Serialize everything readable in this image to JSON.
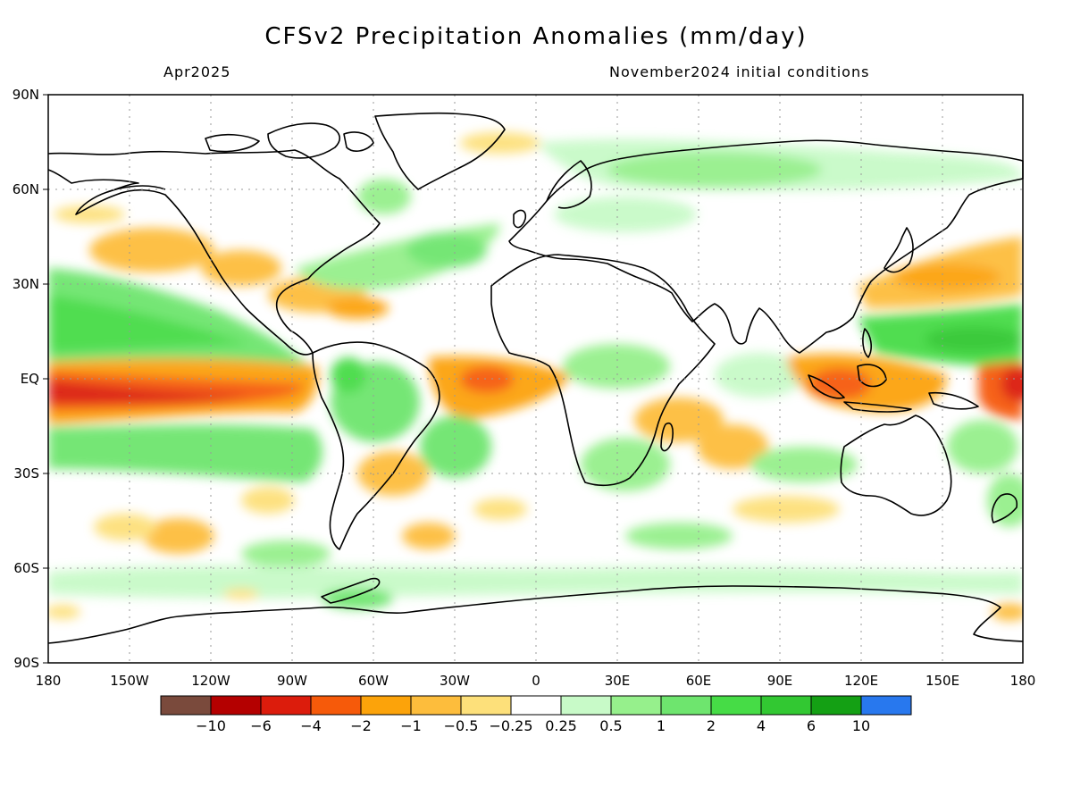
{
  "title": "CFSv2 Precipitation Anomalies (mm/day)",
  "valid_month": "Apr2025",
  "initial_conditions": "November2024 initial conditions",
  "lat_labels": [
    "90N",
    "60N",
    "30N",
    "EQ",
    "30S",
    "60S",
    "90S"
  ],
  "lon_labels": [
    "180",
    "150W",
    "120W",
    "90W",
    "60W",
    "30W",
    "0",
    "30E",
    "60E",
    "90E",
    "120E",
    "150E",
    "180"
  ],
  "colorbar": {
    "colors": [
      "#7a4a3c",
      "#b40000",
      "#dc1c0c",
      "#f65a0a",
      "#fca30a",
      "#fdbd3c",
      "#fde07a",
      "#ffffff",
      "#c8fac8",
      "#96f08c",
      "#6ee56e",
      "#46dc46",
      "#32c832",
      "#14a014",
      "#2878ee"
    ],
    "labels": [
      "−10",
      "−6",
      "−4",
      "−2",
      "−1",
      "−0.5",
      "−0.25",
      "0.25",
      "0.5",
      "1",
      "2",
      "4",
      "6",
      "10"
    ]
  }
}
